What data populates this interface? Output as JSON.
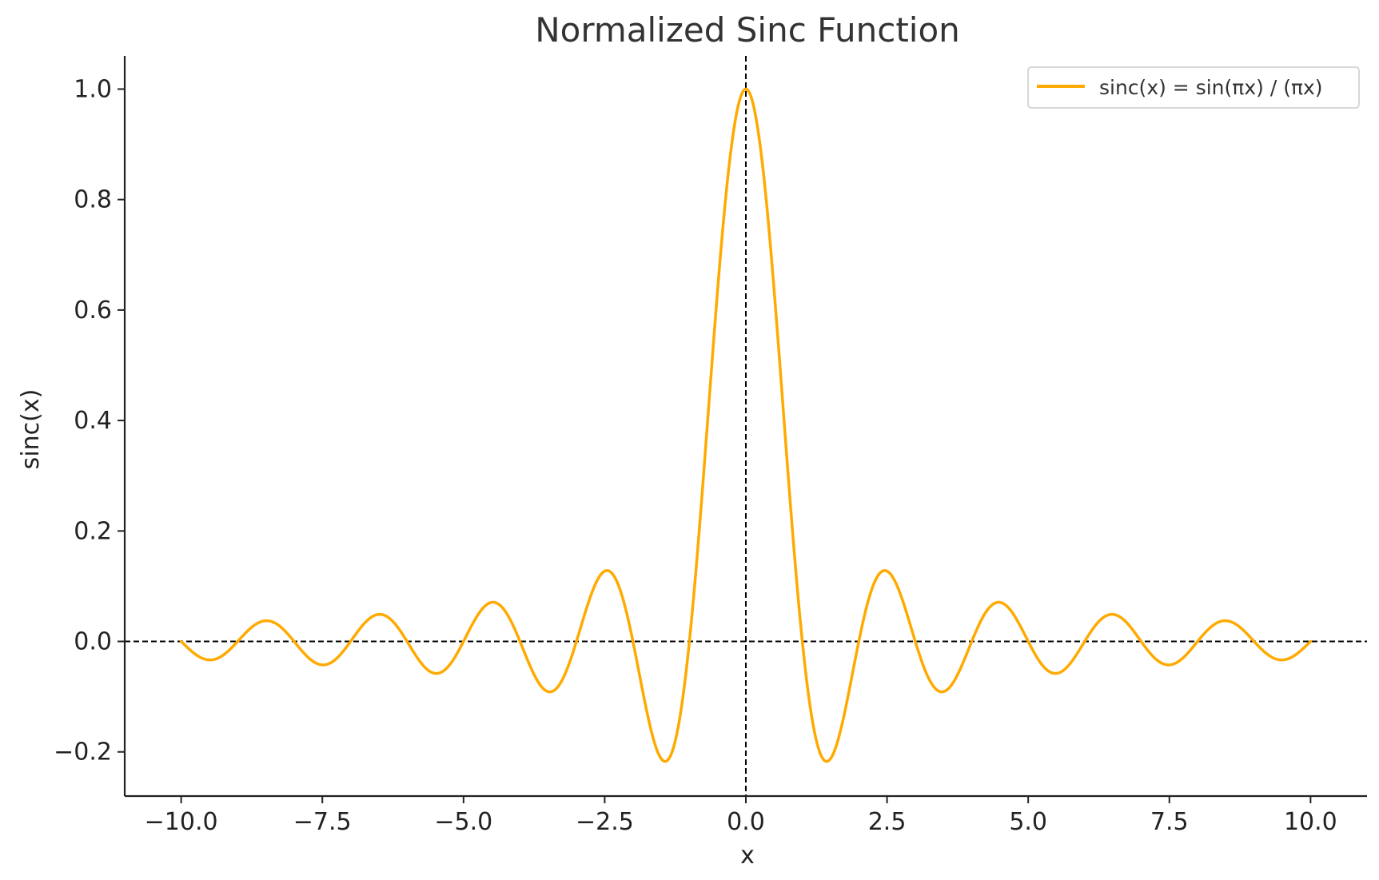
{
  "chart_data": {
    "type": "line",
    "title": "Normalized Sinc Function",
    "xlabel": "x",
    "ylabel": "sinc(x)",
    "xlim": [
      -11.0,
      11.0
    ],
    "ylim": [
      -0.28,
      1.06
    ],
    "x_ticks": [
      -10.0,
      -7.5,
      -5.0,
      -2.5,
      0.0,
      2.5,
      5.0,
      7.5,
      10.0
    ],
    "x_tick_labels": [
      "−10.0",
      "−7.5",
      "−5.0",
      "−2.5",
      "0.0",
      "2.5",
      "5.0",
      "7.5",
      "10.0"
    ],
    "y_ticks": [
      -0.2,
      0.0,
      0.2,
      0.4,
      0.6,
      0.8,
      1.0
    ],
    "y_tick_labels": [
      "−0.2",
      "0.0",
      "0.2",
      "0.4",
      "0.6",
      "0.8",
      "1.0"
    ],
    "grid": false,
    "legend_position": "top-right",
    "reference_lines": [
      {
        "orientation": "horizontal",
        "value": 0.0,
        "style": "dashed",
        "color": "#000000"
      },
      {
        "orientation": "vertical",
        "value": 0.0,
        "style": "dashed",
        "color": "#000000"
      }
    ],
    "series": [
      {
        "name": "sinc(x) = sin(πx) / (πx)",
        "color": "#FFAA00",
        "x": [
          -10.0,
          -9.5,
          -9.0,
          -8.5,
          -8.0,
          -7.5,
          -7.0,
          -6.5,
          -6.0,
          -5.5,
          -5.0,
          -4.5,
          -4.0,
          -3.5,
          -3.0,
          -2.5,
          -2.0,
          -1.5,
          -1.43,
          -1.0,
          -0.5,
          0.0,
          0.5,
          1.0,
          1.43,
          1.5,
          2.0,
          2.5,
          3.0,
          3.5,
          4.0,
          4.5,
          5.0,
          5.5,
          6.0,
          6.5,
          7.0,
          7.5,
          8.0,
          8.5,
          9.0,
          9.5,
          10.0
        ],
        "y": [
          0.0,
          -0.034,
          0.0,
          0.037,
          0.0,
          -0.042,
          0.0,
          0.049,
          0.0,
          -0.058,
          0.0,
          0.071,
          0.0,
          -0.091,
          0.0,
          0.127,
          0.0,
          -0.212,
          -0.217,
          0.0,
          0.637,
          1.0,
          0.637,
          0.0,
          -0.217,
          -0.212,
          0.0,
          0.127,
          0.0,
          -0.091,
          0.0,
          0.071,
          0.0,
          -0.058,
          0.0,
          0.049,
          0.0,
          -0.042,
          0.0,
          0.037,
          0.0,
          -0.034,
          0.0
        ]
      }
    ]
  }
}
